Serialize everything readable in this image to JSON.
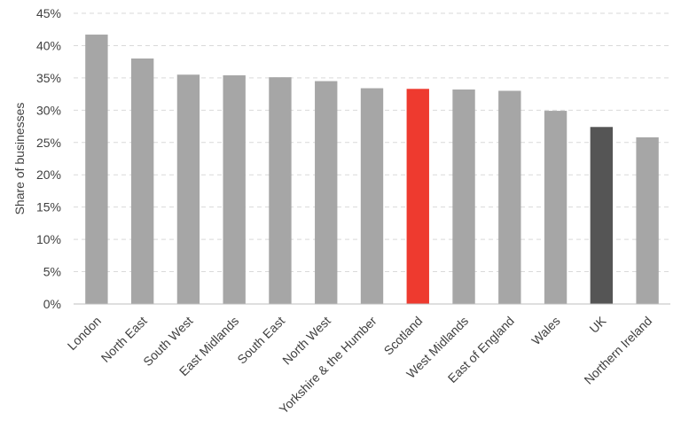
{
  "chart_data": {
    "type": "bar",
    "title": "",
    "xlabel": "",
    "ylabel": "Share of businesses",
    "ylim": [
      0,
      45
    ],
    "y_ticks": [
      "0%",
      "5%",
      "10%",
      "15%",
      "20%",
      "25%",
      "30%",
      "35%",
      "40%",
      "45%"
    ],
    "grid": true,
    "categories": [
      "London",
      "North East",
      "South West",
      "East Midlands",
      "South East",
      "North West",
      "Yorkshire & the Humber",
      "Scotland",
      "West Midlands",
      "East of England",
      "Wales",
      "UK",
      "Northern Ireland"
    ],
    "values": [
      41.7,
      38.0,
      35.5,
      35.4,
      35.1,
      34.5,
      33.4,
      33.3,
      33.2,
      33.0,
      29.9,
      27.4,
      25.8
    ],
    "bar_colors": [
      "#a6a6a6",
      "#a6a6a6",
      "#a6a6a6",
      "#a6a6a6",
      "#a6a6a6",
      "#a6a6a6",
      "#a6a6a6",
      "#ee3a2f",
      "#a6a6a6",
      "#a6a6a6",
      "#a6a6a6",
      "#555555",
      "#a6a6a6"
    ]
  }
}
